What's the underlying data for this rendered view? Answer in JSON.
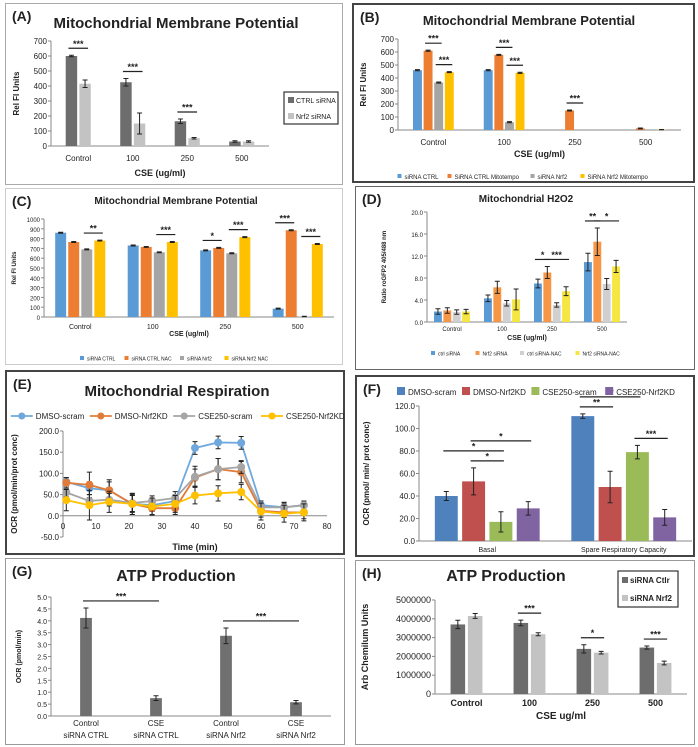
{
  "chart_data": [
    {
      "panel_label": "(A)",
      "type": "bar",
      "title": "Mitochondrial Membrane Potential",
      "xlabel": "CSE (ug/ml)",
      "ylabel": "Rel FI Units",
      "ylim": [
        0,
        700
      ],
      "yticks": [
        "0",
        "100",
        "200",
        "300",
        "400",
        "500",
        "600",
        "700"
      ],
      "categories": [
        "Control",
        "100",
        "250",
        "500"
      ],
      "legend": "right",
      "series": [
        {
          "name": "CTRL siRNA",
          "color": "#6d6d6d",
          "values": [
            600,
            425,
            165,
            30
          ],
          "errors": [
            5,
            25,
            15,
            5
          ]
        },
        {
          "name": "Nrf2 siRNA",
          "color": "#c3c3c3",
          "values": [
            415,
            150,
            52,
            30
          ],
          "errors": [
            25,
            70,
            5,
            5
          ]
        }
      ],
      "significance": [
        {
          "from": [
            0,
            0
          ],
          "to": [
            0,
            1
          ],
          "label": "***"
        },
        {
          "from": [
            1,
            0
          ],
          "to": [
            1,
            1
          ],
          "label": "***"
        },
        {
          "from": [
            2,
            0
          ],
          "to": [
            2,
            1
          ],
          "label": "***"
        }
      ]
    },
    {
      "panel_label": "(B)",
      "type": "bar",
      "title": "Mitochondrial Membrane Potential",
      "xlabel": "CSE (ug/ml)",
      "ylabel": "Rel FI Units",
      "ylim": [
        0,
        700
      ],
      "yticks": [
        "0",
        "100",
        "200",
        "300",
        "400",
        "500",
        "600",
        "700"
      ],
      "categories": [
        "Control",
        "100",
        "250",
        "500"
      ],
      "legend": "bottom",
      "series": [
        {
          "name": "siRNA CTRL",
          "color": "#5b9bd5",
          "values": [
            460,
            460,
            0,
            0
          ],
          "errors": [
            4,
            4,
            0,
            0
          ]
        },
        {
          "name": "SiRNA CTRL Mitotempo",
          "color": "#ed7d31",
          "values": [
            610,
            578,
            150,
            12
          ],
          "errors": [
            4,
            4,
            4,
            3
          ]
        },
        {
          "name": "siRNA Nrf2",
          "color": "#a5a5a5",
          "values": [
            365,
            60,
            0,
            0
          ],
          "errors": [
            4,
            4,
            0,
            0
          ]
        },
        {
          "name": "SiRNA Nrf2 Mitotempo",
          "color": "#ffc000",
          "values": [
            445,
            440,
            0,
            3
          ],
          "errors": [
            4,
            4,
            0,
            1
          ]
        }
      ],
      "significance": [
        {
          "from": [
            0,
            1
          ],
          "to": [
            0,
            2
          ],
          "label": "***"
        },
        {
          "from": [
            0,
            2
          ],
          "to": [
            0,
            3
          ],
          "label": "***"
        },
        {
          "from": [
            1,
            1
          ],
          "to": [
            1,
            2
          ],
          "label": "***"
        },
        {
          "from": [
            1,
            2
          ],
          "to": [
            1,
            3
          ],
          "label": "***"
        },
        {
          "from": [
            2,
            1
          ],
          "to": [
            2,
            2
          ],
          "label": "***"
        }
      ]
    },
    {
      "panel_label": "(C)",
      "type": "bar",
      "title": "Mitochondrial Membrane Potential",
      "xlabel": "CSE (ug/ml)",
      "ylabel": "Rel FI Units",
      "ylim": [
        0,
        1000
      ],
      "yticks": [
        "0",
        "100",
        "200",
        "300",
        "400",
        "500",
        "600",
        "700",
        "800",
        "900",
        "1000"
      ],
      "categories": [
        "Control",
        "100",
        "250",
        "500"
      ],
      "legend": "bottom",
      "series": [
        {
          "name": "siRNA CTRL",
          "color": "#5b9bd5",
          "values": [
            860,
            730,
            680,
            85
          ],
          "errors": [
            5,
            5,
            5,
            5
          ]
        },
        {
          "name": "siRNA CTRL NAC",
          "color": "#ed7d31",
          "values": [
            765,
            715,
            705,
            885
          ],
          "errors": [
            5,
            5,
            5,
            5
          ]
        },
        {
          "name": "siRNA Nrf2",
          "color": "#a5a5a5",
          "values": [
            690,
            660,
            650,
            5
          ],
          "errors": [
            5,
            5,
            5,
            3
          ]
        },
        {
          "name": "siRNA Nrf2 NAC",
          "color": "#ffc000",
          "values": [
            780,
            765,
            815,
            745
          ],
          "errors": [
            5,
            5,
            5,
            5
          ]
        }
      ],
      "significance": [
        {
          "from": [
            0,
            2
          ],
          "to": [
            0,
            3
          ],
          "label": "**"
        },
        {
          "from": [
            1,
            2
          ],
          "to": [
            1,
            3
          ],
          "label": "***"
        },
        {
          "from": [
            2,
            0
          ],
          "to": [
            2,
            1
          ],
          "label": "*"
        },
        {
          "from": [
            2,
            2
          ],
          "to": [
            2,
            3
          ],
          "label": "***"
        },
        {
          "from": [
            3,
            0
          ],
          "to": [
            3,
            1
          ],
          "label": "***"
        },
        {
          "from": [
            3,
            2
          ],
          "to": [
            3,
            3
          ],
          "label": "***"
        }
      ]
    },
    {
      "panel_label": "(D)",
      "type": "bar",
      "title": "Mitochondrial H2O2",
      "xlabel": "CSE (ug/ml)",
      "ylabel": "Ratio roGFP2 405/488 nm",
      "ylim": [
        0,
        20
      ],
      "yticks": [
        "0.0",
        "4.0",
        "8.0",
        "12.0",
        "16.0",
        "20.0"
      ],
      "categories": [
        "Control",
        "100",
        "250",
        "500"
      ],
      "legend": "bottom",
      "series": [
        {
          "name": "ctrl siRNA",
          "color": "#5b9bd5",
          "values": [
            1.9,
            4.3,
            7.0,
            10.9
          ],
          "errors": [
            0.5,
            0.6,
            0.8,
            1.6
          ]
        },
        {
          "name": "Nrf2 siRNA",
          "color": "#f79646",
          "values": [
            2.1,
            6.3,
            9.0,
            14.6
          ],
          "errors": [
            0.5,
            1.1,
            1.1,
            2.5
          ]
        },
        {
          "name": "ctrl siRNA-NAC",
          "color": "#d0d0d0",
          "values": [
            1.8,
            3.4,
            3.1,
            6.9
          ],
          "errors": [
            0.4,
            0.5,
            0.4,
            1.0
          ]
        },
        {
          "name": "Nrf2 siRNA-NAC",
          "color": "#f5e642",
          "values": [
            1.9,
            4.1,
            5.6,
            10.1
          ],
          "errors": [
            0.4,
            1.9,
            0.8,
            1.1
          ]
        }
      ],
      "significance": [
        {
          "from": [
            2,
            0
          ],
          "to": [
            2,
            1
          ],
          "label": "*"
        },
        {
          "from": [
            2,
            1
          ],
          "to": [
            2,
            3
          ],
          "label": "***"
        },
        {
          "from": [
            3,
            0
          ],
          "to": [
            3,
            1
          ],
          "label": "**"
        },
        {
          "from": [
            3,
            1
          ],
          "to": [
            3,
            3
          ],
          "label": "*"
        }
      ]
    },
    {
      "panel_label": "(E)",
      "type": "line",
      "title": "Mitochondrial Respiration",
      "xlabel": "Time (min)",
      "ylabel": "OCR (pmol/min/prot conc)",
      "xlim": [
        0,
        80
      ],
      "ylim": [
        -50,
        200
      ],
      "xticks": [
        "0",
        "10",
        "20",
        "30",
        "40",
        "50",
        "60",
        "70",
        "80"
      ],
      "yticks": [
        "-50.0",
        "0.0",
        "50.0",
        "100.0",
        "150.0",
        "200.0"
      ],
      "legend": "top",
      "x": [
        1,
        8,
        14,
        21,
        27,
        34,
        40,
        47,
        54,
        60,
        67,
        73
      ],
      "series": [
        {
          "name": "DMSO-scram",
          "color": "#6fa8dc",
          "values": [
            80,
            65,
            60,
            28,
            25,
            35,
            160,
            173,
            172,
            25,
            20,
            25
          ],
          "errors": [
            10,
            15,
            20,
            20,
            15,
            15,
            15,
            15,
            15,
            10,
            12,
            10
          ]
        },
        {
          "name": "DMSO-Nrf2KD",
          "color": "#e07b39",
          "values": [
            78,
            73,
            60,
            28,
            18,
            18,
            90,
            110,
            103,
            12,
            8,
            8
          ],
          "errors": [
            12,
            30,
            25,
            25,
            15,
            15,
            20,
            25,
            25,
            15,
            12,
            15
          ]
        },
        {
          "name": "CSE250-scram",
          "color": "#a5a5a5",
          "values": [
            55,
            35,
            38,
            30,
            35,
            42,
            92,
            110,
            115,
            20,
            20,
            25
          ],
          "errors": [
            10,
            15,
            15,
            20,
            12,
            15,
            25,
            25,
            15,
            10,
            10,
            10
          ]
        },
        {
          "name": "CSE250-Nrf2KD",
          "color": "#ffc000",
          "values": [
            37,
            25,
            33,
            28,
            22,
            28,
            48,
            53,
            56,
            10,
            5,
            8
          ],
          "errors": [
            25,
            35,
            25,
            25,
            20,
            20,
            20,
            18,
            18,
            20,
            20,
            20
          ]
        }
      ]
    },
    {
      "panel_label": "(F)",
      "type": "bar",
      "title": "",
      "xlabel": "",
      "ylabel": "OCR (pmol/ min/ prot conc)",
      "ylim": [
        0,
        120
      ],
      "yticks": [
        "0.0",
        "20.0",
        "40.0",
        "60.0",
        "80.0",
        "100.0",
        "120.0"
      ],
      "categories": [
        "Basal",
        "Spare Respiratory Capacity"
      ],
      "legend": "top",
      "series": [
        {
          "name": "DMSO-scram",
          "color": "#4f81bd",
          "values": [
            40,
            111
          ],
          "errors": [
            4,
            2
          ]
        },
        {
          "name": "DMSO-Nrf2KD",
          "color": "#c0504d",
          "values": [
            53,
            48
          ],
          "errors": [
            12,
            14
          ]
        },
        {
          "name": "CSE250-scram",
          "color": "#9bbb59",
          "values": [
            17,
            79
          ],
          "errors": [
            9,
            6
          ]
        },
        {
          "name": "CSE250-Nrf2KD",
          "color": "#8064a2",
          "values": [
            29,
            21
          ],
          "errors": [
            6,
            7
          ]
        }
      ],
      "significance": [
        {
          "from": [
            0,
            1
          ],
          "to": [
            0,
            2
          ],
          "label": "*"
        },
        {
          "from": [
            0,
            0
          ],
          "to": [
            0,
            2
          ],
          "label": "*"
        },
        {
          "from": [
            0,
            1
          ],
          "to": [
            0,
            3
          ],
          "label": "*"
        },
        {
          "from": [
            1,
            0
          ],
          "to": [
            1,
            1
          ],
          "label": "**"
        },
        {
          "from": [
            1,
            0
          ],
          "to": [
            1,
            2
          ],
          "label": "**"
        },
        {
          "from": [
            1,
            2
          ],
          "to": [
            1,
            3
          ],
          "label": "***"
        }
      ]
    },
    {
      "panel_label": "(G)",
      "type": "bar",
      "title": "ATP Production",
      "xlabel": "",
      "ylabel": "OCR (pmol/min)",
      "ylim": [
        0,
        5
      ],
      "yticks": [
        "0.0",
        "0.5",
        "1.0",
        "1.5",
        "2.0",
        "2.5",
        "3.0",
        "3.5",
        "4.0",
        "4.5",
        "5.0"
      ],
      "categories": [
        [
          "Control",
          "siRNA CTRL"
        ],
        [
          "CSE",
          "siRNA CTRL"
        ],
        [
          "Control",
          "siRNA Nrf2"
        ],
        [
          "CSE",
          "siRNA Nrf2"
        ]
      ],
      "legend": "none",
      "series": [
        {
          "name": "",
          "color": "#707070",
          "values": [
            4.12,
            0.75,
            3.37,
            0.58
          ],
          "errors": [
            0.42,
            0.1,
            0.33,
            0.07
          ]
        }
      ],
      "significance": [
        {
          "from": [
            0,
            0
          ],
          "to": [
            1,
            0
          ],
          "label": "***"
        },
        {
          "from": [
            2,
            0
          ],
          "to": [
            3,
            0
          ],
          "label": "***"
        }
      ]
    },
    {
      "panel_label": "(H)",
      "type": "bar",
      "title": "ATP Production",
      "xlabel": "CSE ug/ml",
      "ylabel": "Arb Chemilum Units",
      "ylim": [
        0,
        5000000
      ],
      "yticks": [
        "0",
        "1000000",
        "2000000",
        "3000000",
        "4000000",
        "5000000"
      ],
      "categories": [
        "Control",
        "100",
        "250",
        "500"
      ],
      "legend": "top-right",
      "series": [
        {
          "name": "siRNA Ctlr",
          "color": "#6d6d6d",
          "values": [
            3700000,
            3780000,
            2400000,
            2470000
          ],
          "errors": [
            220000,
            150000,
            220000,
            80000
          ]
        },
        {
          "name": "siRNA Nrf2",
          "color": "#c3c3c3",
          "values": [
            4150000,
            3180000,
            2200000,
            1650000
          ],
          "errors": [
            130000,
            80000,
            70000,
            100000
          ]
        }
      ],
      "significance": [
        {
          "from": [
            1,
            0
          ],
          "to": [
            1,
            1
          ],
          "label": "***"
        },
        {
          "from": [
            2,
            0
          ],
          "to": [
            2,
            1
          ],
          "label": "*"
        },
        {
          "from": [
            3,
            0
          ],
          "to": [
            3,
            1
          ],
          "label": "***"
        }
      ]
    }
  ]
}
